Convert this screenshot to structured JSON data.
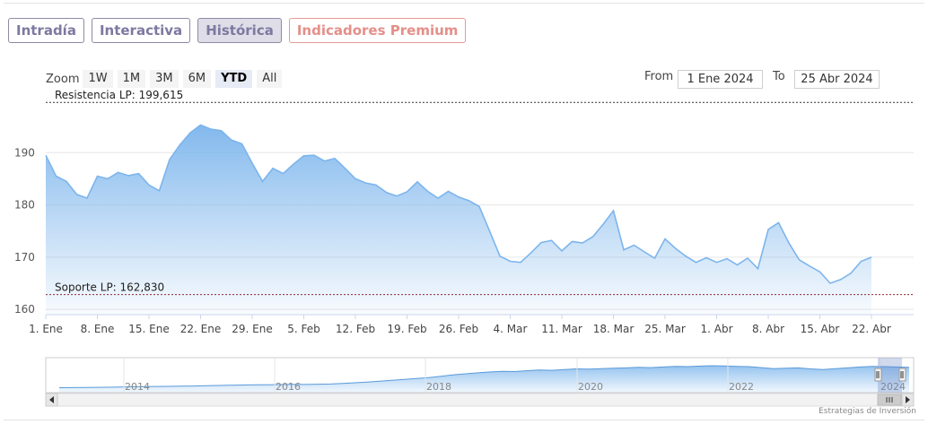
{
  "tabs": [
    {
      "label": "Intradía",
      "state": "normal"
    },
    {
      "label": "Interactiva",
      "state": "normal"
    },
    {
      "label": "Histórica",
      "state": "active"
    },
    {
      "label": "Indicadores Premium",
      "state": "premium"
    }
  ],
  "zoom": {
    "label": "Zoom",
    "buttons": [
      "1W",
      "1M",
      "3M",
      "6M",
      "YTD",
      "All"
    ],
    "selected": "YTD"
  },
  "range": {
    "from_label": "From",
    "from_value": "1 Ene 2024",
    "to_label": "To",
    "to_value": "25 Abr 2024"
  },
  "credit": "Estrategias de Inversión",
  "chart_data": {
    "type": "area",
    "x_tick_labels": [
      "1. Ene",
      "8. Ene",
      "15. Ene",
      "22. Ene",
      "29. Ene",
      "5. Feb",
      "12. Feb",
      "19. Feb",
      "26. Feb",
      "4. Mar",
      "11. Mar",
      "18. Mar",
      "25. Mar",
      "1. Abr",
      "8. Abr",
      "15. Abr",
      "22. Abr"
    ],
    "x_range_days": [
      0,
      115
    ],
    "ylim": [
      159,
      200
    ],
    "y_ticks": [
      160,
      170,
      180,
      190
    ],
    "grid": true,
    "colors": {
      "line": "#7cb5ec",
      "fill_top": "#7cb5ec",
      "fill_bottom": "#ffffff",
      "resistance": "#555555",
      "support": "#8b2a3a"
    },
    "series": [
      {
        "values": [
          {
            "day": 0,
            "close": 189.5
          },
          {
            "day": 1,
            "close": 185.5
          },
          {
            "day": 2,
            "close": 184.5
          },
          {
            "day": 3,
            "close": 182.0
          },
          {
            "day": 4,
            "close": 181.3
          },
          {
            "day": 5,
            "close": 185.5
          },
          {
            "day": 6,
            "close": 185.0
          },
          {
            "day": 7,
            "close": 186.2
          },
          {
            "day": 8,
            "close": 185.6
          },
          {
            "day": 9,
            "close": 186.0
          },
          {
            "day": 10,
            "close": 183.8
          },
          {
            "day": 11,
            "close": 182.7
          },
          {
            "day": 12,
            "close": 188.7
          },
          {
            "day": 13,
            "close": 191.5
          },
          {
            "day": 14,
            "close": 193.8
          },
          {
            "day": 15,
            "close": 195.3
          },
          {
            "day": 16,
            "close": 194.5
          },
          {
            "day": 17,
            "close": 194.2
          },
          {
            "day": 18,
            "close": 192.4
          },
          {
            "day": 19,
            "close": 191.7
          },
          {
            "day": 20,
            "close": 188.0
          },
          {
            "day": 21,
            "close": 184.5
          },
          {
            "day": 22,
            "close": 187.0
          },
          {
            "day": 23,
            "close": 186.0
          },
          {
            "day": 24,
            "close": 187.8
          },
          {
            "day": 25,
            "close": 189.4
          },
          {
            "day": 26,
            "close": 189.5
          },
          {
            "day": 27,
            "close": 188.4
          },
          {
            "day": 28,
            "close": 188.9
          },
          {
            "day": 29,
            "close": 187.0
          },
          {
            "day": 30,
            "close": 185.0
          },
          {
            "day": 31,
            "close": 184.2
          },
          {
            "day": 32,
            "close": 183.8
          },
          {
            "day": 33,
            "close": 182.4
          },
          {
            "day": 34,
            "close": 181.7
          },
          {
            "day": 35,
            "close": 182.5
          },
          {
            "day": 36,
            "close": 184.4
          },
          {
            "day": 37,
            "close": 182.6
          },
          {
            "day": 38,
            "close": 181.3
          },
          {
            "day": 39,
            "close": 182.6
          },
          {
            "day": 40,
            "close": 181.5
          },
          {
            "day": 41,
            "close": 180.8
          },
          {
            "day": 42,
            "close": 179.7
          },
          {
            "day": 43,
            "close": 175.0
          },
          {
            "day": 44,
            "close": 170.2
          },
          {
            "day": 45,
            "close": 169.2
          },
          {
            "day": 46,
            "close": 169.0
          },
          {
            "day": 47,
            "close": 170.8
          },
          {
            "day": 48,
            "close": 172.8
          },
          {
            "day": 49,
            "close": 173.2
          },
          {
            "day": 50,
            "close": 171.2
          },
          {
            "day": 51,
            "close": 173.0
          },
          {
            "day": 52,
            "close": 172.7
          },
          {
            "day": 53,
            "close": 173.9
          },
          {
            "day": 54,
            "close": 176.3
          },
          {
            "day": 55,
            "close": 178.9
          },
          {
            "day": 56,
            "close": 171.4
          },
          {
            "day": 57,
            "close": 172.3
          },
          {
            "day": 58,
            "close": 171.0
          },
          {
            "day": 59,
            "close": 169.8
          },
          {
            "day": 60,
            "close": 173.5
          },
          {
            "day": 61,
            "close": 171.7
          },
          {
            "day": 62,
            "close": 170.2
          },
          {
            "day": 63,
            "close": 169.0
          },
          {
            "day": 64,
            "close": 169.9
          },
          {
            "day": 65,
            "close": 169.0
          },
          {
            "day": 66,
            "close": 169.7
          },
          {
            "day": 67,
            "close": 168.5
          },
          {
            "day": 68,
            "close": 169.8
          },
          {
            "day": 69,
            "close": 167.8
          },
          {
            "day": 70,
            "close": 175.3
          },
          {
            "day": 71,
            "close": 176.6
          },
          {
            "day": 72,
            "close": 172.7
          },
          {
            "day": 73,
            "close": 169.5
          },
          {
            "day": 74,
            "close": 168.3
          },
          {
            "day": 75,
            "close": 167.2
          },
          {
            "day": 76,
            "close": 165.0
          },
          {
            "day": 77,
            "close": 165.7
          },
          {
            "day": 78,
            "close": 166.9
          },
          {
            "day": 79,
            "close": 169.2
          },
          {
            "day": 80,
            "close": 170.0
          }
        ]
      }
    ],
    "trading_day_to_calendar_day": "auto",
    "resistance": {
      "label": "Resistencia LP: 199,615",
      "value": 199.615
    },
    "support": {
      "label": "Soporte LP: 162,830",
      "value": 162.83
    }
  },
  "navigator": {
    "year_labels": [
      "2014",
      "2016",
      "2018",
      "2020",
      "2022",
      "2024"
    ],
    "series_values": [
      18,
      19,
      20,
      21,
      22,
      24,
      25,
      27,
      28,
      29,
      30,
      32,
      34,
      36,
      38,
      40,
      42,
      41,
      43,
      45,
      44,
      46,
      48,
      52,
      58,
      63,
      70,
      78,
      85,
      92,
      100,
      110,
      122,
      130,
      138,
      145,
      150,
      148,
      155,
      160,
      158,
      165,
      170,
      168,
      172,
      175,
      178,
      182,
      180,
      185,
      190,
      188,
      192,
      195,
      193,
      190,
      188,
      180,
      172,
      175,
      178,
      170,
      165,
      172,
      178,
      185,
      190,
      188,
      185,
      182
    ]
  }
}
